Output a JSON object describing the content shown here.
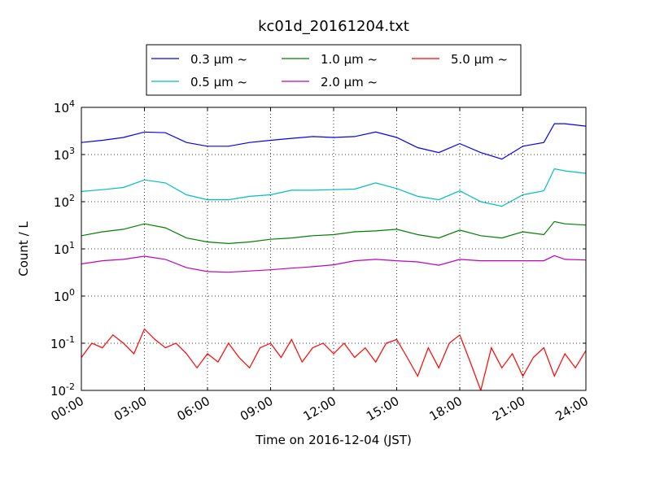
{
  "chart_data": {
    "type": "line",
    "title": "kc01d_20161204.txt",
    "xlabel": "Time on 2016-12-04 (JST)",
    "ylabel": "Count / L",
    "xlim": [
      0,
      24
    ],
    "ylim": [
      0.01,
      10000
    ],
    "yscale": "log",
    "grid": true,
    "legend_position": "top-center, outside",
    "x_ticks": [
      0,
      3,
      6,
      9,
      12,
      15,
      18,
      21,
      24
    ],
    "x_tick_labels": [
      "00:00",
      "03:00",
      "06:00",
      "09:00",
      "12:00",
      "15:00",
      "18:00",
      "21:00",
      "24:00"
    ],
    "y_ticks": [
      0.01,
      0.1,
      1,
      10,
      100,
      1000,
      10000
    ],
    "y_tick_labels": [
      {
        "base": "10",
        "exp": "-2"
      },
      {
        "base": "10",
        "exp": "-1"
      },
      {
        "base": "10",
        "exp": "0"
      },
      {
        "base": "10",
        "exp": "1"
      },
      {
        "base": "10",
        "exp": "2"
      },
      {
        "base": "10",
        "exp": "3"
      },
      {
        "base": "10",
        "exp": "4"
      }
    ],
    "series": [
      {
        "name": "0.3 μm ~",
        "color": "#0000ff",
        "x": [
          0,
          1,
          2,
          3,
          4,
          5,
          6,
          7,
          8,
          9,
          10,
          11,
          12,
          13,
          14,
          15,
          16,
          17,
          18,
          19,
          20,
          21,
          22,
          22.5,
          23,
          24
        ],
        "y": [
          1800,
          2000,
          2300,
          3000,
          2900,
          1800,
          1500,
          1500,
          1800,
          2000,
          2200,
          2400,
          2300,
          2400,
          3000,
          2300,
          1400,
          1100,
          1700,
          1100,
          800,
          1500,
          1800,
          4500,
          4500,
          4000
        ]
      },
      {
        "name": "0.5 μm ~",
        "color": "#00bfbf",
        "x": [
          0,
          1,
          2,
          3,
          4,
          5,
          6,
          7,
          8,
          9,
          10,
          11,
          12,
          13,
          14,
          15,
          16,
          17,
          18,
          19,
          20,
          21,
          22,
          22.5,
          23,
          24
        ],
        "y": [
          165,
          180,
          200,
          290,
          250,
          140,
          110,
          110,
          130,
          140,
          175,
          175,
          180,
          185,
          250,
          190,
          130,
          110,
          170,
          100,
          80,
          140,
          170,
          500,
          450,
          400
        ]
      },
      {
        "name": "1.0 μm ~",
        "color": "#008000",
        "x": [
          0,
          1,
          2,
          3,
          4,
          5,
          6,
          7,
          8,
          9,
          10,
          11,
          12,
          13,
          14,
          15,
          16,
          17,
          18,
          19,
          20,
          21,
          22,
          22.5,
          23,
          24
        ],
        "y": [
          19,
          23,
          26,
          34,
          28,
          17,
          14,
          13,
          14,
          16,
          17,
          19,
          20,
          23,
          24,
          26,
          20,
          17,
          25,
          19,
          17,
          23,
          20,
          38,
          34,
          32
        ]
      },
      {
        "name": "2.0 μm ~",
        "color": "#bf00bf",
        "x": [
          0,
          1,
          2,
          3,
          4,
          5,
          6,
          7,
          8,
          9,
          10,
          11,
          12,
          13,
          14,
          15,
          16,
          17,
          18,
          19,
          20,
          21,
          22,
          22.5,
          23,
          24
        ],
        "y": [
          4.8,
          5.6,
          6,
          7,
          6,
          4,
          3.3,
          3.2,
          3.4,
          3.6,
          3.9,
          4.2,
          4.6,
          5.6,
          6,
          5.6,
          5.3,
          4.5,
          6,
          5.6,
          5.6,
          5.6,
          5.6,
          7.2,
          6,
          5.8
        ]
      },
      {
        "name": "5.0 μm ~",
        "color": "#ff0000",
        "x": [
          0,
          0.5,
          1,
          1.5,
          2,
          2.5,
          3,
          3.5,
          4,
          4.5,
          5,
          5.5,
          6,
          6.5,
          7,
          7.5,
          8,
          8.5,
          9,
          9.5,
          10,
          10.5,
          11,
          11.5,
          12,
          12.5,
          13,
          13.5,
          14,
          14.5,
          15,
          15.5,
          16,
          16.5,
          17,
          17.5,
          18,
          18.5,
          19,
          19.5,
          20,
          20.5,
          21,
          21.5,
          22,
          22.5,
          23,
          23.5,
          24
        ],
        "y": [
          0.05,
          0.1,
          0.08,
          0.15,
          0.1,
          0.06,
          0.2,
          0.12,
          0.08,
          0.1,
          0.06,
          0.03,
          0.06,
          0.04,
          0.1,
          0.05,
          0.03,
          0.08,
          0.1,
          0.05,
          0.12,
          0.04,
          0.08,
          0.1,
          0.06,
          0.1,
          0.05,
          0.08,
          0.04,
          0.1,
          0.12,
          0.05,
          0.02,
          0.08,
          0.03,
          0.1,
          0.15,
          0.04,
          0.01,
          0.08,
          0.03,
          0.06,
          0.02,
          0.05,
          0.08,
          0.02,
          0.06,
          0.03,
          0.07
        ]
      }
    ]
  }
}
